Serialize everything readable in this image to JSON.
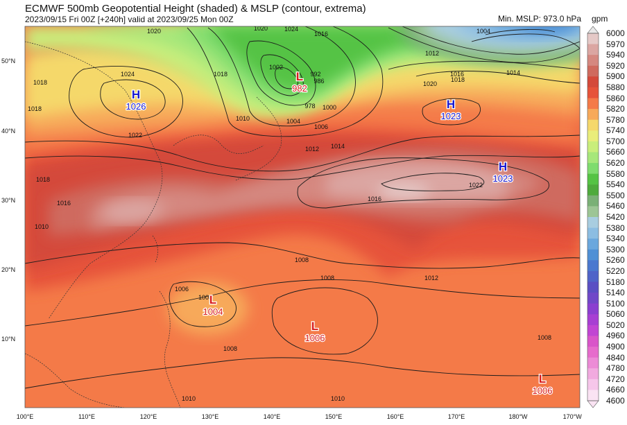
{
  "header": {
    "title": "ECMWF 500mb Geopotential Height (shaded) & MSLP (contour, extrema)",
    "subtitle": "2023/09/15 Fri 00Z [+240h] valid at 2023/09/25 Mon 00Z",
    "min_mslp": "Min. MSLP: 973.0 hPa",
    "unit": "gpm"
  },
  "colorbar": {
    "levels": [
      "6000",
      "5970",
      "5940",
      "5920",
      "5900",
      "5880",
      "5860",
      "5820",
      "5780",
      "5740",
      "5700",
      "5660",
      "5620",
      "5580",
      "5540",
      "5500",
      "5460",
      "5420",
      "5380",
      "5340",
      "5300",
      "5260",
      "5220",
      "5180",
      "5140",
      "5100",
      "5060",
      "5020",
      "4960",
      "4900",
      "4840",
      "4780",
      "4720",
      "4660",
      "4600"
    ],
    "colors": [
      "#e8e8e8",
      "#e5c9c7",
      "#dba6a2",
      "#d58880",
      "#cf6a5e",
      "#d4493a",
      "#e6533a",
      "#f47a48",
      "#f7a95a",
      "#f5d86b",
      "#e9ed7a",
      "#c9ee7b",
      "#a6e77a",
      "#7fdc6e",
      "#55c344",
      "#4eaa3c",
      "#7ab076",
      "#9dc595",
      "#a8cde0",
      "#8cbde2",
      "#6aa7dd",
      "#4f90d5",
      "#4a78cf",
      "#4f63c8",
      "#5a4fc3",
      "#7048c8",
      "#8b3fd0",
      "#a73fd3",
      "#c145d3",
      "#d955c9",
      "#e66ccc",
      "#ec8bd6",
      "#f1aadf",
      "#f6c6ea",
      "#fae3f3"
    ]
  },
  "axes": {
    "lat_labels": [
      "50°N",
      "40°N",
      "30°N",
      "20°N",
      "10°N"
    ],
    "lon_labels": [
      "100°E",
      "110°E",
      "120°E",
      "130°E",
      "140°E",
      "150°E",
      "160°E",
      "170°E",
      "180°W",
      "170°W"
    ]
  },
  "extrema": [
    {
      "type": "H",
      "value": "1026",
      "color": "#1a1ad0"
    },
    {
      "type": "L",
      "value": "982",
      "color": "#d81b1b"
    },
    {
      "type": "H",
      "value": "1023",
      "color": "#1a1ad0"
    },
    {
      "type": "H",
      "value": "1023",
      "color": "#1a1ad0"
    },
    {
      "type": "L",
      "value": "1004",
      "color": "#d81b1b"
    },
    {
      "type": "L",
      "value": "1006",
      "color": "#d81b1b"
    },
    {
      "type": "L",
      "value": "1006",
      "color": "#d81b1b"
    }
  ],
  "isobar_labels": [
    "1020",
    "1016",
    "1020",
    "1024",
    "1018",
    "1018",
    "1018",
    "1022",
    "1010",
    "1004",
    "1006",
    "1012",
    "1014",
    "1016",
    "1002",
    "992",
    "986",
    "1000",
    "978",
    "1004",
    "1012",
    "1016",
    "1020",
    "1018",
    "1014",
    "1022",
    "1024",
    "1018",
    "1016",
    "1010",
    "1008",
    "1012",
    "1006",
    "1004",
    "1008",
    "1008",
    "1010",
    "1010",
    "1008"
  ],
  "legend_color_labels": []
}
